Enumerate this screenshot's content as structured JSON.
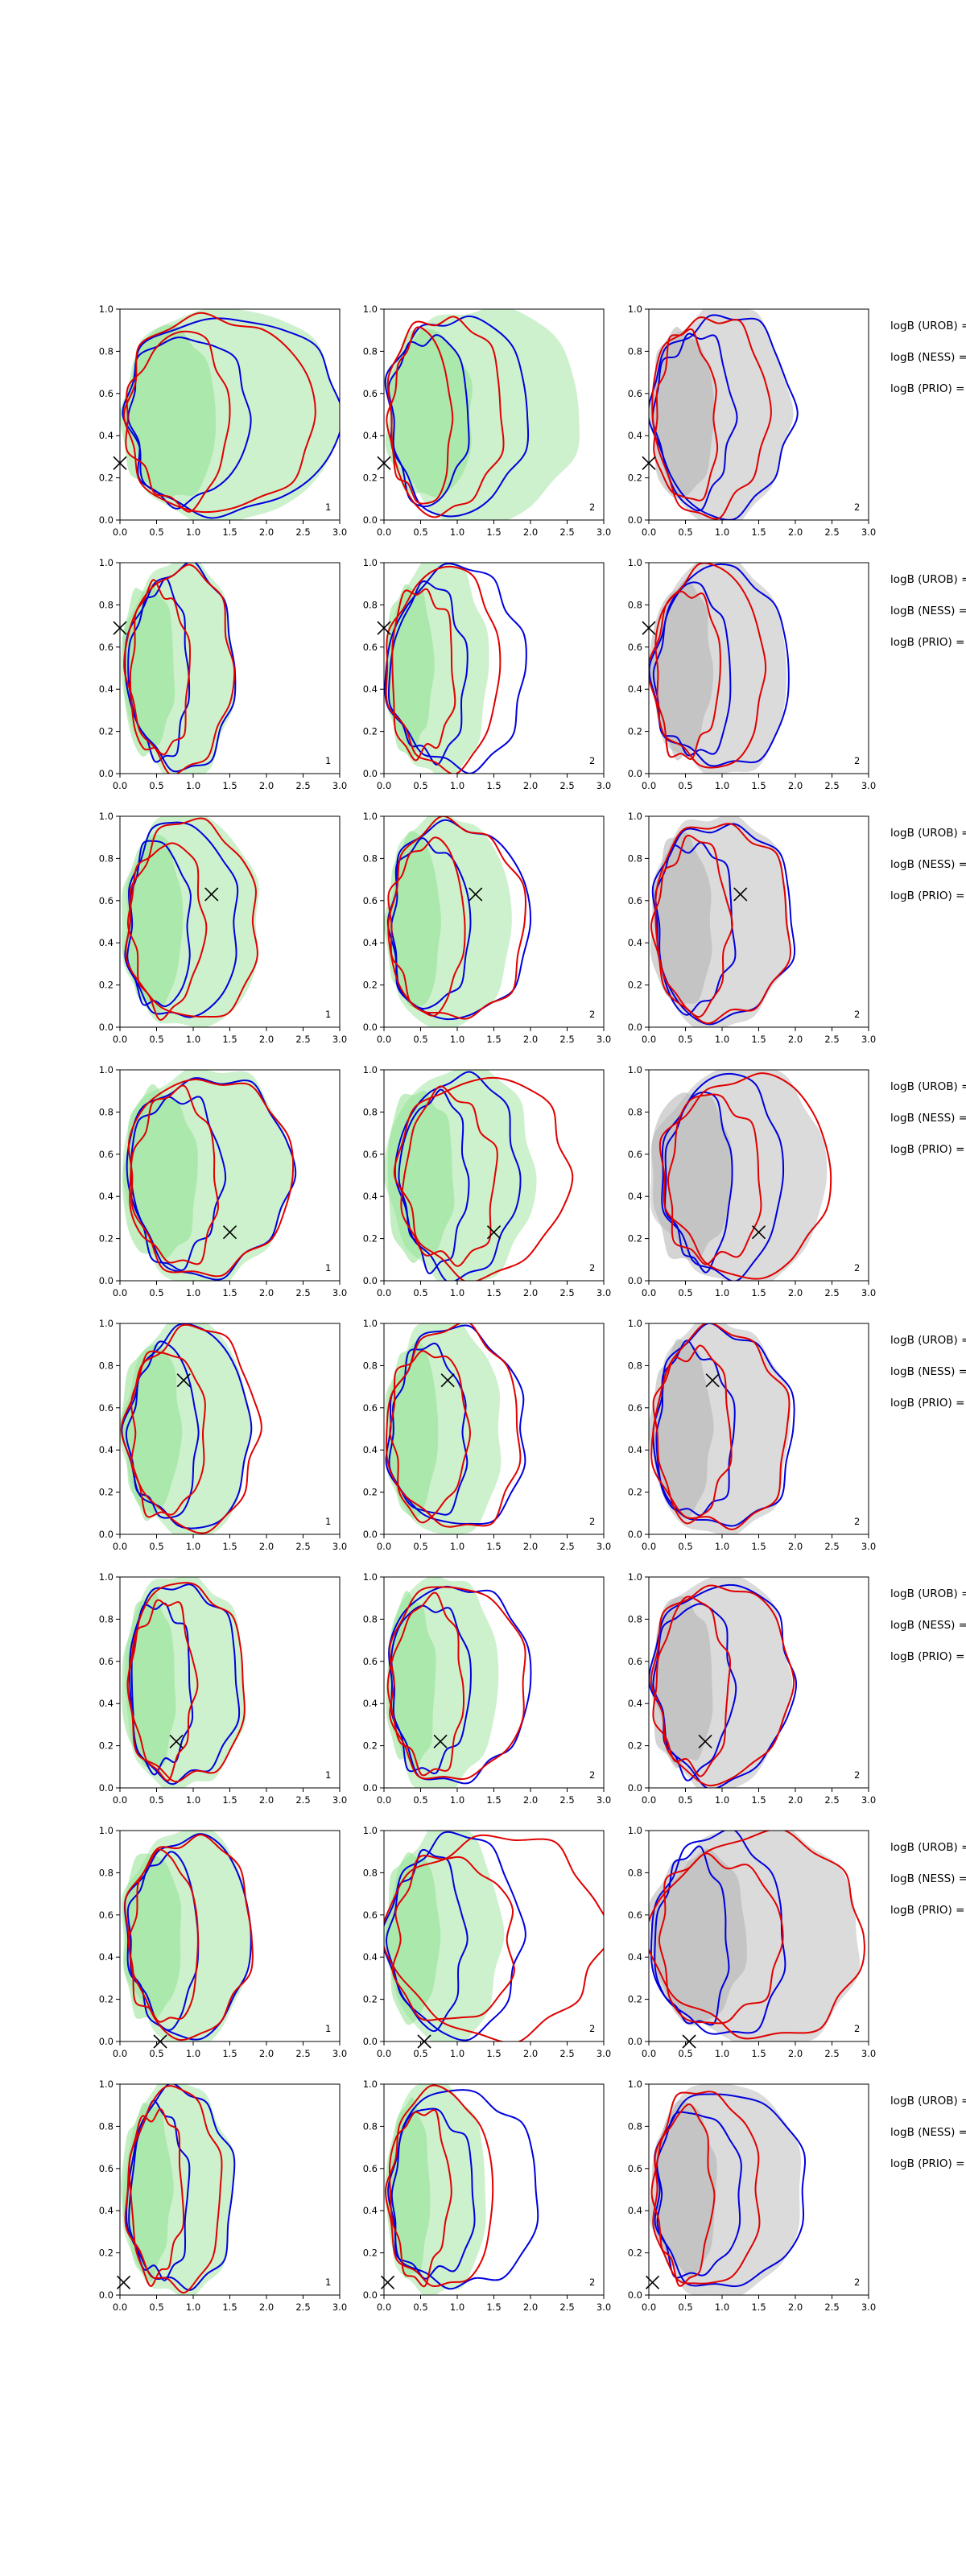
{
  "chart_data": {
    "type": "contour",
    "layout": {
      "rows": 8,
      "cols": 3
    },
    "xlim": [
      0,
      3
    ],
    "ylim": [
      0,
      1
    ],
    "xticks": [
      "0.0",
      "0.5",
      "1.0",
      "1.5",
      "2.0",
      "2.5",
      "3.0"
    ],
    "yticks": [
      "0.0",
      "0.2",
      "0.4",
      "0.6",
      "0.8",
      "1.0"
    ],
    "column_tags": [
      "1",
      "2",
      "2"
    ],
    "colors": {
      "green_fill": "#90e090",
      "grey_fill": "#b0b0b0",
      "red_contour": "#e00000",
      "blue_contour": "#0000dd",
      "marker": "#000000"
    },
    "row_annotations": [
      "logB (UROB) =",
      "logB (NESS) =",
      "logB (PRIO) ="
    ],
    "rows": [
      {
        "marker": [
          0.0,
          0.27
        ],
        "green": {
          "x": [
            0.04,
            2.95
          ],
          "y": [
            0.0,
            1.0
          ],
          "shape": "L"
        },
        "red": {
          "x": [
            0.05,
            2.6
          ],
          "y": [
            0.03,
            0.92
          ]
        },
        "blue": {
          "x": [
            0.05,
            2.95
          ],
          "y": [
            0.01,
            0.96
          ]
        },
        "col2": {
          "red": [
            0.05,
            1.6
          ],
          "blue": [
            0.05,
            1.95
          ]
        },
        "col3": {
          "red": [
            0.05,
            1.6
          ],
          "blue": [
            0.05,
            1.95
          ]
        }
      },
      {
        "marker": [
          0.0,
          0.69
        ],
        "green": {
          "x": [
            0.04,
            1.6
          ],
          "y": [
            0.0,
            1.0
          ]
        },
        "red": {
          "x": [
            0.1,
            1.55
          ],
          "y": [
            0.02,
            0.9
          ]
        },
        "blue": {
          "x": [
            0.1,
            1.6
          ],
          "y": [
            0.03,
            0.95
          ]
        },
        "col2": {
          "red": [
            0.05,
            1.6
          ],
          "blue": [
            0.05,
            1.95
          ]
        },
        "col3": {
          "red": [
            0.05,
            1.6
          ],
          "blue": [
            0.05,
            1.95
          ]
        }
      },
      {
        "marker": [
          1.25,
          0.63
        ],
        "green": {
          "x": [
            0.04,
            1.9
          ],
          "y": [
            0.0,
            1.0
          ]
        },
        "red": {
          "x": [
            0.1,
            1.9
          ],
          "y": [
            0.03,
            0.93
          ]
        },
        "blue": {
          "x": [
            0.08,
            1.6
          ],
          "y": [
            0.03,
            0.96
          ]
        },
        "col2": {
          "red": [
            0.05,
            1.9
          ],
          "blue": [
            0.05,
            1.95
          ]
        },
        "col3": {
          "red": [
            0.05,
            1.9
          ],
          "blue": [
            0.05,
            1.95
          ]
        }
      },
      {
        "marker": [
          1.5,
          0.23
        ],
        "green": {
          "x": [
            0.04,
            2.3
          ],
          "y": [
            0.0,
            1.0
          ]
        },
        "red": {
          "x": [
            0.1,
            2.3
          ],
          "y": [
            0.05,
            0.93
          ]
        },
        "blue": {
          "x": [
            0.1,
            2.3
          ],
          "y": [
            0.03,
            0.95
          ]
        },
        "col2": {
          "red": [
            0.2,
            2.5
          ],
          "blue": [
            0.2,
            1.85
          ]
        },
        "col3": {
          "red": [
            0.2,
            2.5
          ],
          "blue": [
            0.2,
            1.85
          ]
        }
      },
      {
        "marker": [
          0.87,
          0.73
        ],
        "green": {
          "x": [
            0.04,
            1.8
          ],
          "y": [
            0.0,
            1.0
          ]
        },
        "red": {
          "x": [
            0.1,
            1.9
          ],
          "y": [
            0.03,
            0.9
          ]
        },
        "blue": {
          "x": [
            0.1,
            1.8
          ],
          "y": [
            0.0,
            0.93
          ]
        },
        "col2": {
          "red": [
            0.05,
            1.9
          ],
          "blue": [
            0.05,
            1.95
          ]
        },
        "col3": {
          "red": [
            0.05,
            1.9
          ],
          "blue": [
            0.05,
            1.9
          ]
        }
      },
      {
        "marker": [
          0.77,
          0.22
        ],
        "green": {
          "x": [
            0.04,
            1.7
          ],
          "y": [
            0.0,
            1.0
          ]
        },
        "red": {
          "x": [
            0.1,
            1.7
          ],
          "y": [
            0.03,
            0.92
          ]
        },
        "blue": {
          "x": [
            0.1,
            1.6
          ],
          "y": [
            0.03,
            0.96
          ]
        },
        "col2": {
          "red": [
            0.05,
            1.9
          ],
          "blue": [
            0.05,
            1.95
          ]
        },
        "col3": {
          "red": [
            0.05,
            1.9
          ],
          "blue": [
            0.05,
            1.95
          ]
        }
      },
      {
        "marker": [
          0.55,
          0.0
        ],
        "green": {
          "x": [
            0.04,
            1.8
          ],
          "y": [
            0.0,
            1.0
          ]
        },
        "red": {
          "x": [
            0.1,
            1.8
          ],
          "y": [
            0.03,
            0.93
          ]
        },
        "blue": {
          "x": [
            0.1,
            1.8
          ],
          "y": [
            0.03,
            0.95
          ]
        },
        "col2": {
          "red": [
            0.05,
            3.0
          ],
          "blue": [
            0.05,
            1.9
          ]
        },
        "col3": {
          "red": [
            0.05,
            2.8
          ],
          "blue": [
            0.05,
            1.9
          ]
        }
      },
      {
        "marker": [
          0.05,
          0.06
        ],
        "green": {
          "x": [
            0.04,
            1.55
          ],
          "y": [
            0.0,
            1.0
          ]
        },
        "red": {
          "x": [
            0.1,
            1.4
          ],
          "y": [
            0.0,
            0.94
          ]
        },
        "blue": {
          "x": [
            0.1,
            1.55
          ],
          "y": [
            0.0,
            0.96
          ]
        },
        "col2": {
          "red": [
            0.05,
            1.5
          ],
          "blue": [
            0.05,
            2.1
          ]
        },
        "col3": {
          "red": [
            0.05,
            1.5
          ],
          "blue": [
            0.05,
            2.1
          ]
        }
      }
    ]
  }
}
